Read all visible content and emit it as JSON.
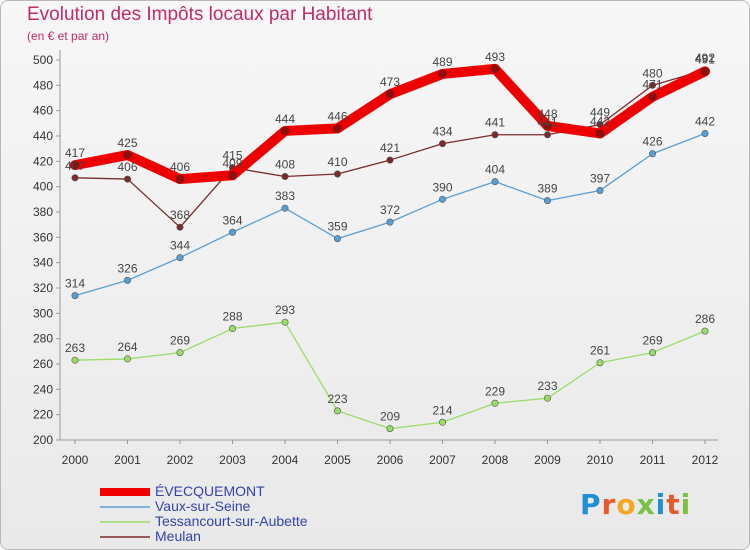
{
  "header": {
    "title": "Evolution des Impôts locaux par Habitant",
    "subtitle": "(en € et par an)"
  },
  "logo": {
    "letters": [
      "P",
      "r",
      "o",
      "x",
      "i",
      "t",
      "i"
    ],
    "colors": [
      "#1f8fd6",
      "#e55a2b",
      "#f5a623",
      "#7ac143",
      "#1f8fd6",
      "#e55a2b",
      "#7ac143"
    ]
  },
  "chart_data": {
    "type": "line",
    "x": [
      "2000",
      "2001",
      "2002",
      "2003",
      "2004",
      "2005",
      "2006",
      "2007",
      "2008",
      "2009",
      "2010",
      "2011",
      "2012"
    ],
    "ylim": [
      200,
      500
    ],
    "yticks": [
      200,
      220,
      240,
      260,
      280,
      300,
      320,
      340,
      360,
      380,
      400,
      420,
      440,
      460,
      480,
      500
    ],
    "grid": false,
    "legend_position": "bottom-left",
    "series": [
      {
        "name": "Meulan",
        "color": "#7a2a2a",
        "values": [
          407,
          406,
          368,
          415,
          408,
          410,
          421,
          434,
          441,
          441,
          449,
          480,
          492
        ],
        "labels": [
          "407",
          "406",
          "368",
          "415",
          "408",
          "410",
          "421",
          "434",
          "441",
          "441",
          "449",
          "480",
          "492"
        ]
      },
      {
        "name": "Vaux-sur-Seine",
        "color": "#5a9fd4",
        "values": [
          314,
          326,
          344,
          364,
          383,
          359,
          372,
          390,
          404,
          389,
          397,
          426,
          442
        ],
        "labels": [
          "314",
          "326",
          "344",
          "364",
          "383",
          "359",
          "372",
          "390",
          "404",
          "389",
          "397",
          "426",
          "442"
        ]
      },
      {
        "name": "Tessancourt-sur-Aubette",
        "color": "#99dd66",
        "values": [
          263,
          264,
          269,
          288,
          293,
          223,
          209,
          214,
          229,
          233,
          261,
          269,
          286
        ],
        "labels": [
          "263",
          "264",
          "269",
          "288",
          "293",
          "223",
          "209",
          "214",
          "229",
          "233",
          "261",
          "269",
          "286"
        ]
      },
      {
        "name": "ÉVECQUEMONT",
        "color": "#ee0000",
        "values": [
          417,
          425,
          406,
          409,
          444,
          446,
          473,
          489,
          493,
          448,
          442,
          471,
          491
        ],
        "labels": [
          "417",
          "425",
          "406",
          "409",
          "444",
          "446",
          "473",
          "489",
          "493",
          "448",
          "442",
          "471",
          "491"
        ]
      }
    ],
    "legend_order": [
      "ÉVECQUEMONT",
      "Vaux-sur-Seine",
      "Tessancourt-sur-Aubette",
      "Meulan"
    ]
  }
}
